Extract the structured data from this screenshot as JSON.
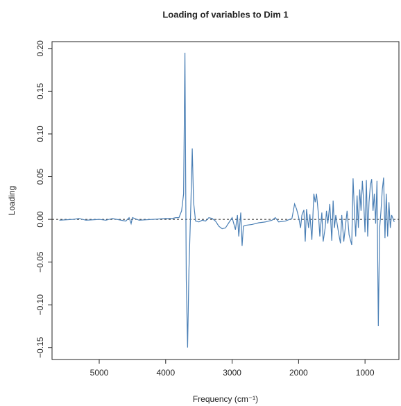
{
  "chart_data": {
    "type": "line",
    "title": "Loading of variables to Dim 1",
    "xlabel": "Frequency (cm⁻¹)",
    "ylabel": "Loading",
    "xlim": [
      5710,
      490
    ],
    "ylim": [
      -0.164,
      0.208
    ],
    "xticks": [
      5000,
      4000,
      3000,
      2000,
      1000
    ],
    "yticks": [
      {
        "value": -0.15,
        "label": "−0.15"
      },
      {
        "value": -0.1,
        "label": "−0.10"
      },
      {
        "value": -0.05,
        "label": "−0.05"
      },
      {
        "value": 0,
        "label": "0.00"
      },
      0.05,
      {
        "value": 0.1,
        "label": "0.10"
      },
      0.15,
      {
        "value": 0.2,
        "label": "0.20"
      }
    ],
    "reference_line": 0,
    "x": [
      5600,
      5400,
      5300,
      5200,
      5000,
      4900,
      4800,
      4600,
      4550,
      4520,
      4500,
      4400,
      4200,
      4000,
      3900,
      3850,
      3800,
      3760,
      3730,
      3710,
      3690,
      3670,
      3650,
      3620,
      3600,
      3580,
      3550,
      3500,
      3450,
      3400,
      3350,
      3300,
      3250,
      3200,
      3150,
      3100,
      3050,
      3000,
      2950,
      2920,
      2900,
      2870,
      2850,
      2830,
      2800,
      2700,
      2600,
      2500,
      2400,
      2350,
      2300,
      2200,
      2100,
      2060,
      2030,
      2000,
      1970,
      1950,
      1920,
      1900,
      1880,
      1850,
      1830,
      1800,
      1770,
      1750,
      1730,
      1700,
      1680,
      1650,
      1630,
      1600,
      1580,
      1560,
      1530,
      1500,
      1480,
      1460,
      1440,
      1400,
      1370,
      1350,
      1320,
      1300,
      1270,
      1240,
      1200,
      1180,
      1160,
      1140,
      1120,
      1100,
      1080,
      1060,
      1040,
      1020,
      1000,
      980,
      960,
      940,
      920,
      900,
      880,
      860,
      840,
      820,
      800,
      780,
      760,
      740,
      720,
      700,
      680,
      660,
      640,
      620,
      600,
      560
    ],
    "series": [
      {
        "name": "Dim 1",
        "color": "#4a7fb5",
        "values": [
          -0.001,
          0,
          0.001,
          -0.001,
          0,
          -0.001,
          0.001,
          -0.002,
          0.002,
          -0.005,
          0.002,
          -0.001,
          0,
          0.001,
          0.001,
          0.002,
          0.002,
          0.01,
          0.03,
          0.195,
          -0.07,
          -0.15,
          -0.06,
          0.02,
          0.083,
          0.02,
          -0.002,
          -0.003,
          -0.001,
          -0.002,
          0.002,
          0.001,
          -0.002,
          -0.008,
          -0.011,
          -0.01,
          -0.004,
          0.002,
          -0.012,
          0.005,
          -0.02,
          0.008,
          -0.031,
          -0.008,
          -0.007,
          -0.006,
          -0.004,
          -0.003,
          -0.001,
          0.002,
          -0.003,
          -0.002,
          0.001,
          0.018,
          0.012,
          0.003,
          -0.01,
          0.005,
          0.011,
          -0.026,
          0.012,
          -0.01,
          0.006,
          -0.024,
          0.03,
          0.02,
          0.03,
          0.005,
          -0.02,
          0.008,
          -0.026,
          -0.01,
          0.01,
          -0.005,
          0.018,
          -0.025,
          0.022,
          -0.01,
          0.005,
          -0.015,
          -0.028,
          0.005,
          -0.026,
          -0.012,
          0.01,
          -0.018,
          -0.03,
          0.048,
          0.01,
          -0.02,
          0.028,
          -0.01,
          0.035,
          0.01,
          0.045,
          0.02,
          -0.015,
          0.046,
          -0.02,
          0.02,
          0.04,
          0.047,
          0.01,
          0.03,
          -0.005,
          0.045,
          -0.125,
          -0.01,
          0.01,
          0.035,
          0.049,
          -0.022,
          0.03,
          -0.02,
          0.02,
          -0.01,
          0.005,
          -0.003
        ]
      }
    ]
  }
}
